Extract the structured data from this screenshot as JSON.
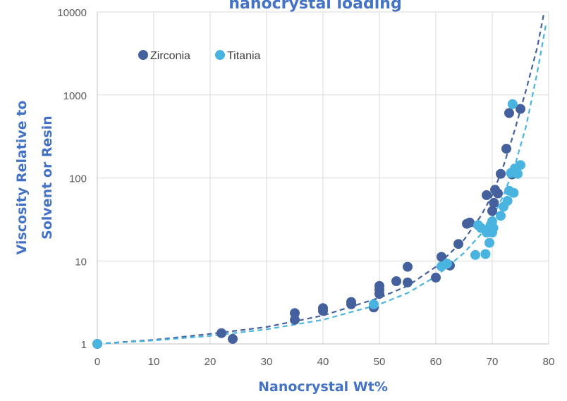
{
  "chart_data": {
    "type": "scatter",
    "title": "nanocrystal loading",
    "xlabel": "Nanocrystal Wt%",
    "ylabel_line1": "Viscosity Relative to",
    "ylabel_line2": "Solvent or Resin",
    "xlim": [
      0,
      80
    ],
    "ylim": [
      1,
      10000
    ],
    "yscale": "log",
    "xticks": [
      "0",
      "10",
      "20",
      "30",
      "40",
      "50",
      "60",
      "70",
      "80"
    ],
    "yticks": [
      "1",
      "10",
      "100",
      "1000",
      "10000"
    ],
    "grid": true,
    "legend_position": "top-left",
    "label_color": "#4472c4",
    "series": [
      {
        "name": "Zirconia",
        "color": "#44619e",
        "points": [
          [
            0,
            1.0
          ],
          [
            22,
            1.35
          ],
          [
            24,
            1.15
          ],
          [
            35,
            1.95
          ],
          [
            35,
            2.35
          ],
          [
            40,
            2.5
          ],
          [
            40,
            2.7
          ],
          [
            45,
            3.0
          ],
          [
            45,
            3.2
          ],
          [
            49,
            2.75
          ],
          [
            50,
            4.0
          ],
          [
            50,
            4.5
          ],
          [
            50,
            5.0
          ],
          [
            53,
            5.7
          ],
          [
            55,
            5.5
          ],
          [
            55,
            8.5
          ],
          [
            60,
            6.3
          ],
          [
            61,
            11.2
          ],
          [
            62.5,
            8.8
          ],
          [
            64,
            16
          ],
          [
            65.5,
            28
          ],
          [
            66,
            29
          ],
          [
            69,
            62
          ],
          [
            70,
            40
          ],
          [
            70.3,
            50
          ],
          [
            70.5,
            72
          ],
          [
            71,
            65
          ],
          [
            71.5,
            112
          ],
          [
            72.5,
            225
          ],
          [
            73,
            605
          ],
          [
            73.5,
            110
          ],
          [
            75,
            680
          ]
        ],
        "trend": [
          [
            0,
            1.0
          ],
          [
            10,
            1.12
          ],
          [
            20,
            1.32
          ],
          [
            30,
            1.6
          ],
          [
            40,
            2.2
          ],
          [
            50,
            3.6
          ],
          [
            55,
            5.0
          ],
          [
            60,
            8.5
          ],
          [
            65,
            18
          ],
          [
            68,
            35
          ],
          [
            70,
            62
          ],
          [
            72,
            140
          ],
          [
            74,
            380
          ],
          [
            76,
            1150
          ],
          [
            78,
            3800
          ],
          [
            79.2,
            10000
          ]
        ]
      },
      {
        "name": "Titania",
        "color": "#4ab4e0",
        "points": [
          [
            0,
            1.0
          ],
          [
            49,
            3.0
          ],
          [
            61,
            8.6
          ],
          [
            62,
            9.3
          ],
          [
            67,
            11.8
          ],
          [
            67.5,
            27
          ],
          [
            68,
            25
          ],
          [
            68.8,
            12.1
          ],
          [
            69,
            22
          ],
          [
            69.3,
            24
          ],
          [
            69.5,
            16.5
          ],
          [
            69.7,
            27
          ],
          [
            70,
            30
          ],
          [
            70,
            22
          ],
          [
            70.2,
            25
          ],
          [
            71.5,
            35
          ],
          [
            72,
            45
          ],
          [
            72.7,
            53
          ],
          [
            73,
            70
          ],
          [
            73.3,
            115
          ],
          [
            73.6,
            775
          ],
          [
            73.8,
            66
          ],
          [
            74,
            130
          ],
          [
            74.5,
            112
          ],
          [
            75,
            143
          ]
        ],
        "trend": [
          [
            0,
            1.0
          ],
          [
            10,
            1.1
          ],
          [
            20,
            1.25
          ],
          [
            30,
            1.5
          ],
          [
            40,
            1.95
          ],
          [
            50,
            3.0
          ],
          [
            55,
            4.1
          ],
          [
            60,
            6.5
          ],
          [
            65,
            12.5
          ],
          [
            68,
            21
          ],
          [
            70,
            33
          ],
          [
            72,
            62
          ],
          [
            74,
            140
          ],
          [
            76,
            420
          ],
          [
            78,
            1900
          ],
          [
            79.5,
            7000
          ]
        ]
      }
    ]
  }
}
